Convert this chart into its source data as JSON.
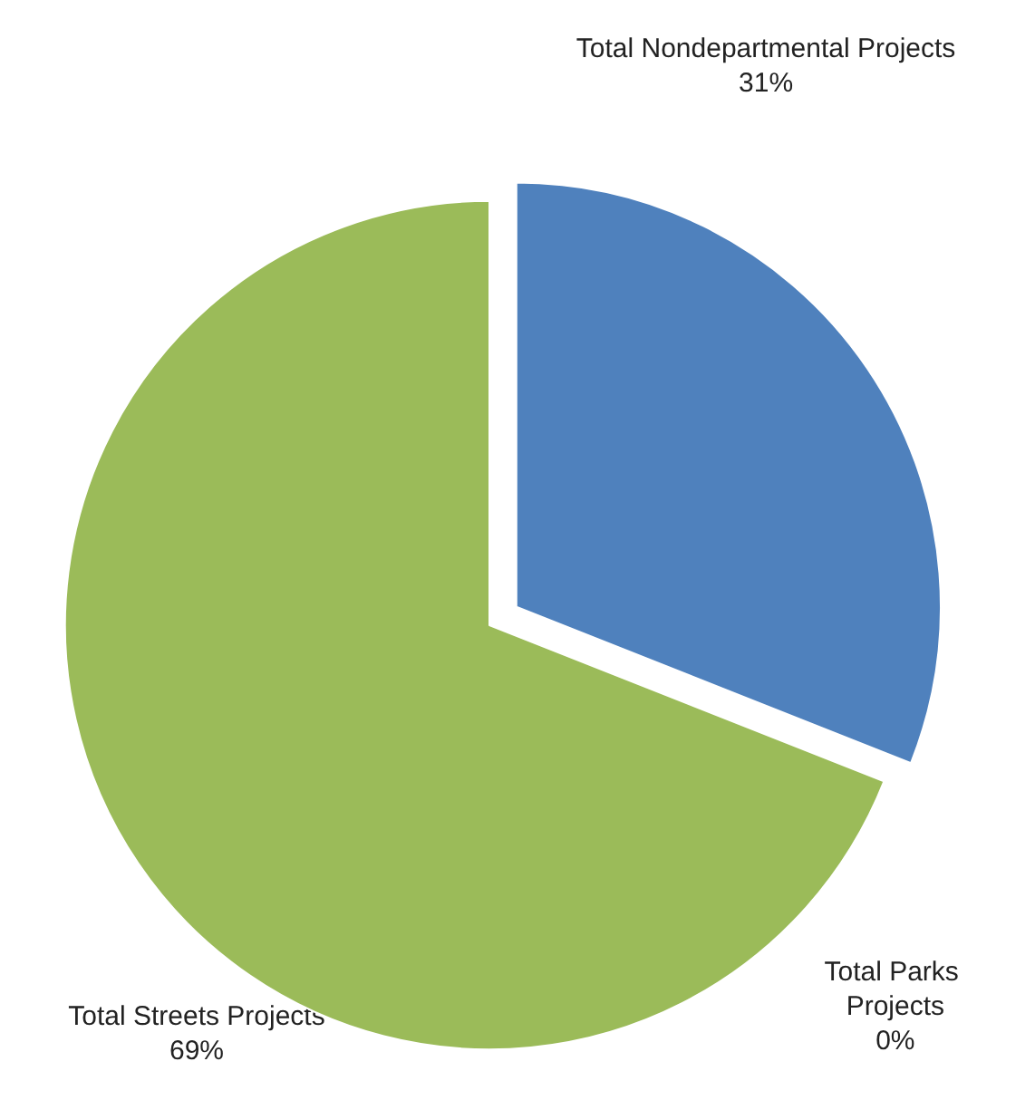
{
  "chart_data": {
    "type": "pie",
    "categories": [
      "Total Nondepartmental Projects",
      "Total Parks Projects",
      "Total Streets Projects"
    ],
    "values": [
      31,
      0,
      69
    ],
    "value_labels": [
      "31%",
      "0%",
      "69%"
    ],
    "colors": [
      "#4f81bd",
      "#c0504d",
      "#9bbb59"
    ],
    "legend": false
  }
}
